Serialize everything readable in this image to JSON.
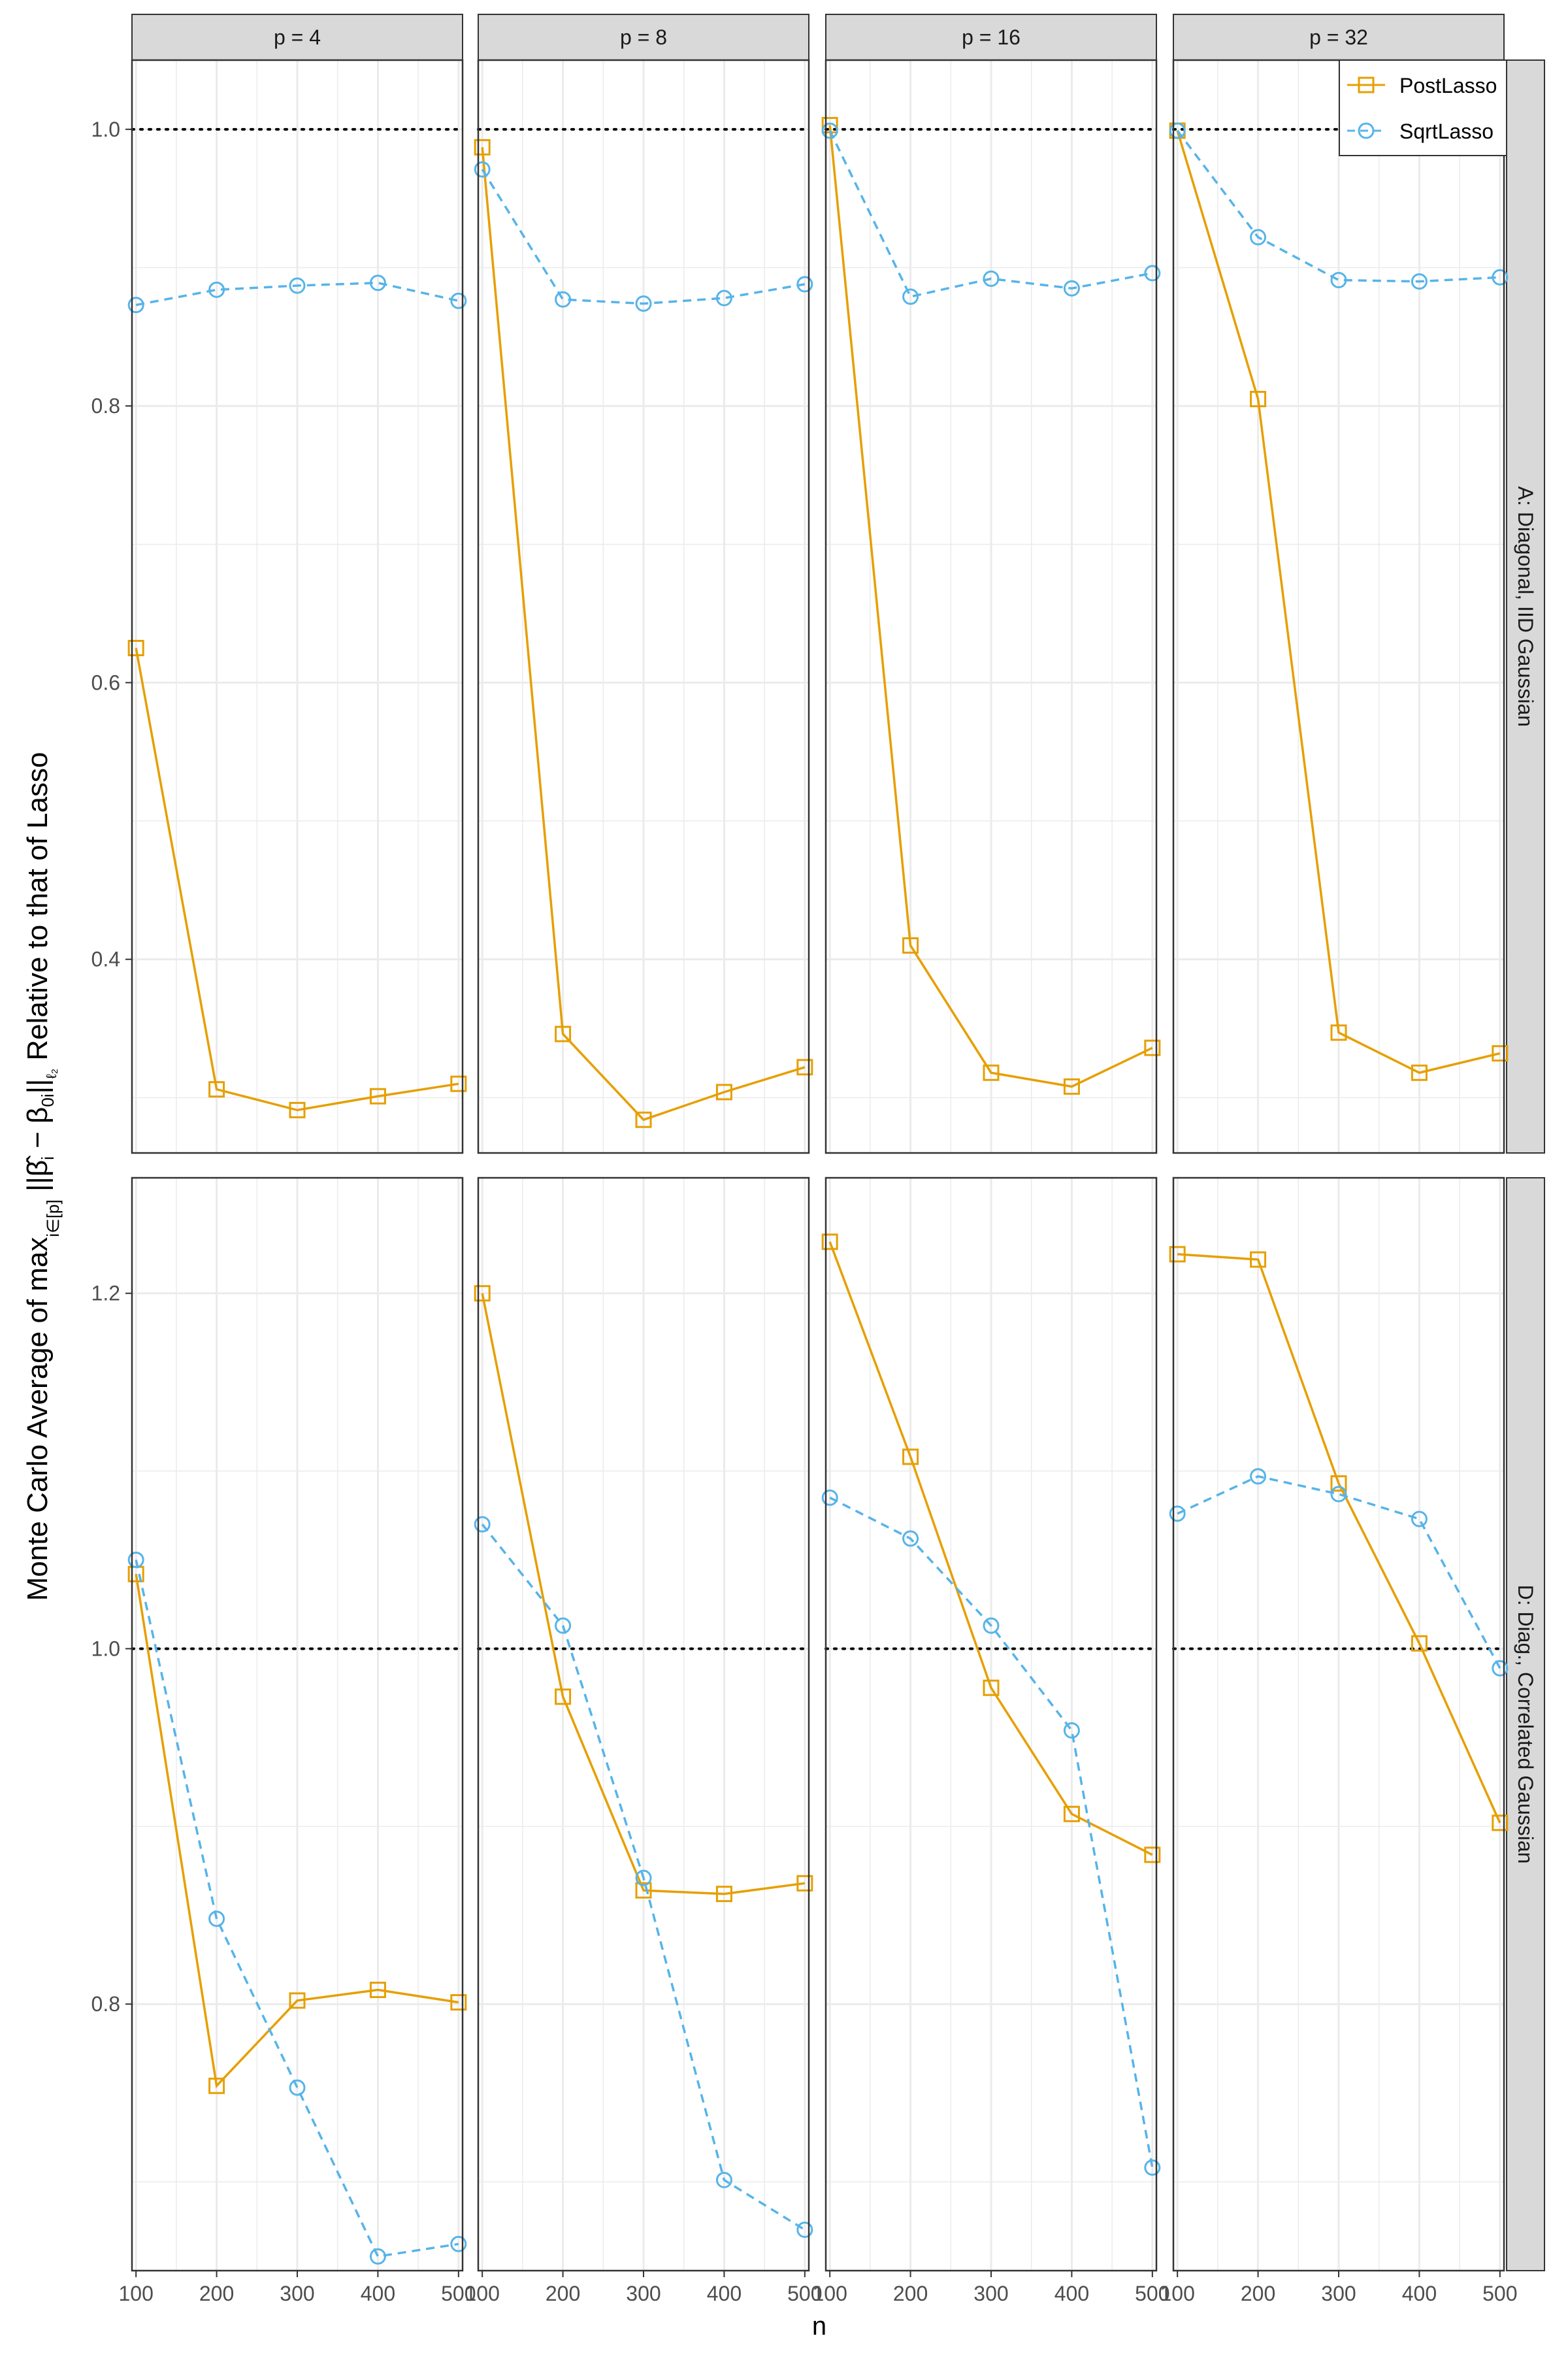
{
  "figure": {
    "ylabel_main": "Monte Carlo Average of max",
    "ylabel_sub": "i∈[p]",
    "ylabel_beta_hat": "β̂",
    "ylabel_i": "i",
    "ylabel_minus": " − β",
    "ylabel_0i": "0i",
    "ylabel_norm_sub": "ℓ₂",
    "ylabel_tail": "Relative to that of Lasso",
    "xlabel": "n",
    "legend": {
      "position": "top-right",
      "items": [
        {
          "name": "PostLasso",
          "marker": "square",
          "line": "solid"
        },
        {
          "name": "SqrtLasso",
          "marker": "circle",
          "line": "dashed"
        }
      ]
    },
    "colors": {
      "PostLasso": "#E69F00",
      "SqrtLasso": "#56B4E9",
      "strip": "#d9d9d9",
      "grid": "#ebebeb",
      "reference_line": "#000000"
    }
  },
  "chart_data": {
    "type": "line",
    "facets": {
      "columns": [
        "p = 4",
        "p = 8",
        "p = 16",
        "p = 32"
      ],
      "rows": [
        "A: Diagonal, IID Gaussian",
        "D: Diag., Correlated Gaussian"
      ]
    },
    "x": [
      100,
      200,
      300,
      400,
      500
    ],
    "x_ticks": [
      "100",
      "200",
      "300",
      "400",
      "500"
    ],
    "xlim": [
      95,
      505
    ],
    "reference_line_y": 1.0,
    "grid": true,
    "rows": [
      {
        "label": "A: Diagonal, IID Gaussian",
        "ylim": [
          0.26,
          1.05
        ],
        "y_ticks": [
          0.4,
          0.6,
          0.8,
          1.0
        ],
        "y_tick_labels": [
          "0.4",
          "0.6",
          "0.8",
          "1.0"
        ],
        "y_minor_ticks": [
          0.3,
          0.5,
          0.7,
          0.9
        ],
        "panels": [
          {
            "p": "p = 4",
            "series": [
              {
                "name": "PostLasso",
                "values": [
                  0.625,
                  0.306,
                  0.291,
                  0.301,
                  0.31
                ]
              },
              {
                "name": "SqrtLasso",
                "values": [
                  0.873,
                  0.884,
                  0.887,
                  0.889,
                  0.876
                ]
              }
            ]
          },
          {
            "p": "p = 8",
            "series": [
              {
                "name": "PostLasso",
                "values": [
                  0.987,
                  0.346,
                  0.284,
                  0.304,
                  0.322
                ]
              },
              {
                "name": "SqrtLasso",
                "values": [
                  0.971,
                  0.877,
                  0.874,
                  0.878,
                  0.888
                ]
              }
            ]
          },
          {
            "p": "p = 16",
            "series": [
              {
                "name": "PostLasso",
                "values": [
                  1.003,
                  0.41,
                  0.318,
                  0.308,
                  0.336
                ]
              },
              {
                "name": "SqrtLasso",
                "values": [
                  0.999,
                  0.879,
                  0.892,
                  0.885,
                  0.896
                ]
              }
            ]
          },
          {
            "p": "p = 32",
            "series": [
              {
                "name": "PostLasso",
                "values": [
                  0.999,
                  0.805,
                  0.347,
                  0.318,
                  0.332
                ]
              },
              {
                "name": "SqrtLasso",
                "values": [
                  0.999,
                  0.922,
                  0.891,
                  0.89,
                  0.893
                ]
              }
            ]
          }
        ]
      },
      {
        "label": "D: Diag., Correlated Gaussian",
        "ylim": [
          0.65,
          1.265
        ],
        "y_ticks": [
          0.8,
          1.0,
          1.2
        ],
        "y_tick_labels": [
          "0.8",
          "1.0",
          "1.2"
        ],
        "y_minor_ticks": [
          0.7,
          0.9,
          1.1
        ],
        "panels": [
          {
            "p": "p = 4",
            "series": [
              {
                "name": "PostLasso",
                "values": [
                  1.042,
                  0.754,
                  0.802,
                  0.808,
                  0.801
                ]
              },
              {
                "name": "SqrtLasso",
                "values": [
                  1.05,
                  0.848,
                  0.753,
                  0.658,
                  0.665
                ]
              }
            ]
          },
          {
            "p": "p = 8",
            "series": [
              {
                "name": "PostLasso",
                "values": [
                  1.2,
                  0.973,
                  0.864,
                  0.862,
                  0.868
                ]
              },
              {
                "name": "SqrtLasso",
                "values": [
                  1.07,
                  1.013,
                  0.871,
                  0.701,
                  0.673
                ]
              }
            ]
          },
          {
            "p": "p = 16",
            "series": [
              {
                "name": "PostLasso",
                "values": [
                  1.229,
                  1.108,
                  0.978,
                  0.907,
                  0.884
                ]
              },
              {
                "name": "SqrtLasso",
                "values": [
                  1.085,
                  1.062,
                  1.013,
                  0.954,
                  0.708
                ]
              }
            ]
          },
          {
            "p": "p = 32",
            "series": [
              {
                "name": "PostLasso",
                "values": [
                  1.222,
                  1.219,
                  1.093,
                  1.003,
                  0.902
                ]
              },
              {
                "name": "SqrtLasso",
                "values": [
                  1.076,
                  1.097,
                  1.087,
                  1.073,
                  0.989
                ]
              }
            ]
          }
        ]
      }
    ]
  }
}
